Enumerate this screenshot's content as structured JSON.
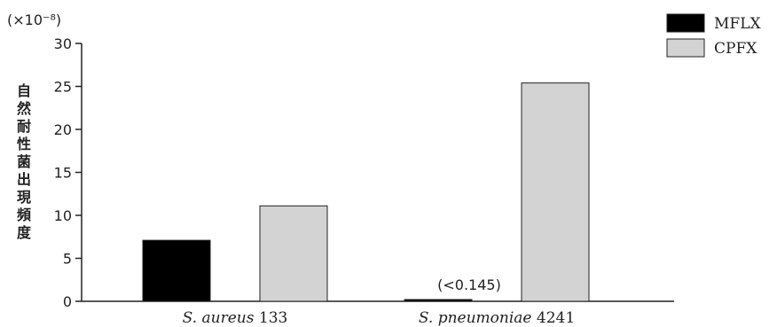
{
  "chart_data": {
    "type": "bar",
    "unit_label": "(×10⁻⁸)",
    "ylabel": "自然耐性菌出現頻度",
    "ylim": [
      0,
      30
    ],
    "yticks": [
      "0",
      "5",
      "10",
      "15",
      "20",
      "25",
      "30"
    ],
    "categories": [
      {
        "italic": "S. aureus",
        "suffix": " 133"
      },
      {
        "italic": "S. pneumoniae",
        "suffix": " 4241"
      }
    ],
    "series": [
      {
        "name": "MFLX",
        "color": "#000000",
        "values": [
          7.1,
          0.145
        ]
      },
      {
        "name": "CPFX",
        "color": "#d3d3d3",
        "values": [
          11.1,
          25.4
        ]
      }
    ],
    "annotations": [
      "(<0.145)"
    ],
    "legend_position": "top-right"
  }
}
